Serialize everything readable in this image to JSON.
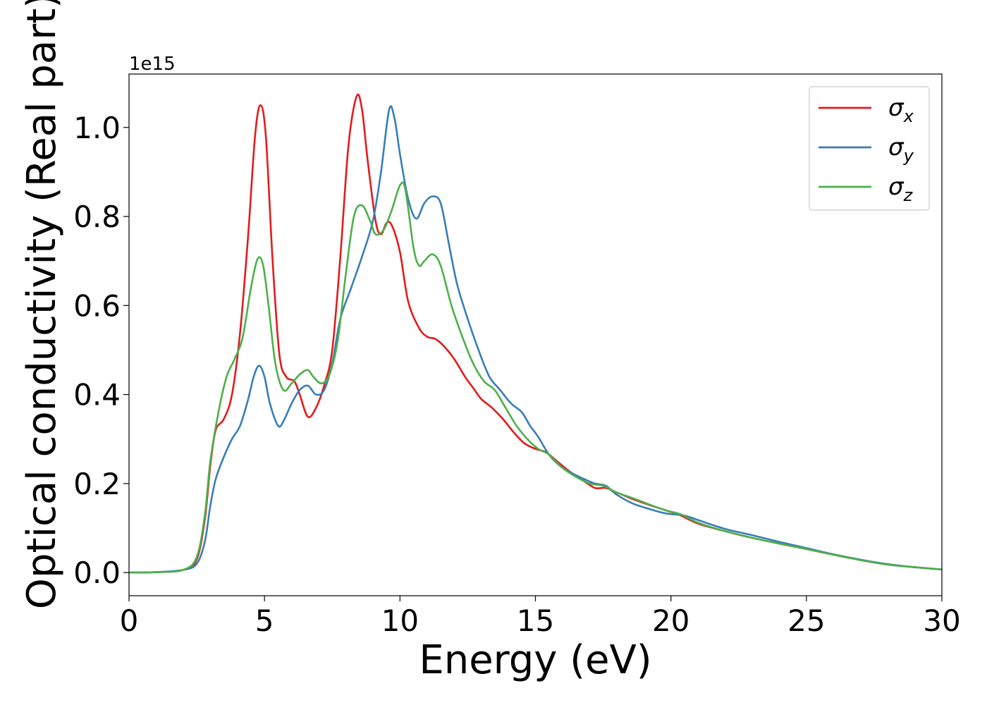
{
  "chart_data": {
    "type": "line",
    "title": "",
    "xlabel": "Energy (eV)",
    "ylabel": "Optical conductivity (Real part)",
    "offset_label": "1e15",
    "xlim": [
      0,
      30
    ],
    "ylim": [
      -0.052,
      1.12
    ],
    "x_ticks": [
      0,
      5,
      10,
      15,
      20,
      25,
      30
    ],
    "x_tick_labels": [
      "0",
      "5",
      "10",
      "15",
      "20",
      "25",
      "30"
    ],
    "y_ticks": [
      0.0,
      0.2,
      0.4,
      0.6,
      0.8,
      1.0
    ],
    "y_tick_labels": [
      "0.0",
      "0.2",
      "0.4",
      "0.6",
      "0.8",
      "1.0"
    ],
    "grid": false,
    "legend_position": "top-right",
    "series": [
      {
        "name": "σ_x",
        "color": "#e41a1c",
        "points": [
          [
            0,
            0
          ],
          [
            1,
            0.001
          ],
          [
            2,
            0.006
          ],
          [
            2.5,
            0.03
          ],
          [
            2.8,
            0.12
          ],
          [
            3.0,
            0.24
          ],
          [
            3.2,
            0.32
          ],
          [
            3.5,
            0.345
          ],
          [
            3.8,
            0.4
          ],
          [
            4.1,
            0.54
          ],
          [
            4.4,
            0.76
          ],
          [
            4.65,
            0.98
          ],
          [
            4.85,
            1.05
          ],
          [
            5.05,
            0.98
          ],
          [
            5.3,
            0.7
          ],
          [
            5.55,
            0.49
          ],
          [
            5.8,
            0.44
          ],
          [
            6.1,
            0.43
          ],
          [
            6.3,
            0.4
          ],
          [
            6.6,
            0.35
          ],
          [
            6.9,
            0.37
          ],
          [
            7.2,
            0.42
          ],
          [
            7.5,
            0.5
          ],
          [
            7.8,
            0.71
          ],
          [
            8.1,
            0.96
          ],
          [
            8.4,
            1.07
          ],
          [
            8.6,
            1.04
          ],
          [
            8.8,
            0.93
          ],
          [
            9.1,
            0.79
          ],
          [
            9.3,
            0.76
          ],
          [
            9.5,
            0.785
          ],
          [
            9.7,
            0.78
          ],
          [
            10.0,
            0.72
          ],
          [
            10.3,
            0.61
          ],
          [
            10.7,
            0.55
          ],
          [
            11.0,
            0.53
          ],
          [
            11.3,
            0.525
          ],
          [
            11.6,
            0.51
          ],
          [
            12.0,
            0.48
          ],
          [
            12.4,
            0.44
          ],
          [
            12.7,
            0.415
          ],
          [
            13.0,
            0.39
          ],
          [
            13.4,
            0.37
          ],
          [
            13.8,
            0.345
          ],
          [
            14.2,
            0.315
          ],
          [
            14.6,
            0.29
          ],
          [
            15.0,
            0.278
          ],
          [
            15.4,
            0.27
          ],
          [
            15.8,
            0.25
          ],
          [
            16.2,
            0.23
          ],
          [
            16.8,
            0.205
          ],
          [
            17.2,
            0.19
          ],
          [
            17.6,
            0.19
          ],
          [
            18.0,
            0.18
          ],
          [
            18.6,
            0.165
          ],
          [
            19.2,
            0.152
          ],
          [
            19.8,
            0.14
          ],
          [
            20.3,
            0.13
          ],
          [
            21,
            0.11
          ],
          [
            22,
            0.093
          ],
          [
            23,
            0.078
          ],
          [
            24,
            0.065
          ],
          [
            25,
            0.053
          ],
          [
            26,
            0.04
          ],
          [
            27,
            0.028
          ],
          [
            28,
            0.018
          ],
          [
            29,
            0.012
          ],
          [
            30,
            0.007
          ]
        ]
      },
      {
        "name": "σ_y",
        "color": "#377eb8",
        "points": [
          [
            0,
            0
          ],
          [
            1,
            0.001
          ],
          [
            2,
            0.006
          ],
          [
            2.5,
            0.02
          ],
          [
            2.8,
            0.07
          ],
          [
            3.0,
            0.15
          ],
          [
            3.2,
            0.21
          ],
          [
            3.5,
            0.26
          ],
          [
            3.8,
            0.3
          ],
          [
            4.1,
            0.33
          ],
          [
            4.4,
            0.39
          ],
          [
            4.6,
            0.44
          ],
          [
            4.8,
            0.465
          ],
          [
            5.0,
            0.44
          ],
          [
            5.2,
            0.38
          ],
          [
            5.5,
            0.33
          ],
          [
            5.7,
            0.34
          ],
          [
            6.0,
            0.38
          ],
          [
            6.3,
            0.41
          ],
          [
            6.6,
            0.42
          ],
          [
            6.9,
            0.4
          ],
          [
            7.2,
            0.41
          ],
          [
            7.5,
            0.47
          ],
          [
            7.8,
            0.57
          ],
          [
            8.2,
            0.64
          ],
          [
            8.6,
            0.71
          ],
          [
            9.0,
            0.79
          ],
          [
            9.3,
            0.9
          ],
          [
            9.6,
            1.04
          ],
          [
            9.8,
            1.02
          ],
          [
            10.0,
            0.94
          ],
          [
            10.3,
            0.84
          ],
          [
            10.6,
            0.795
          ],
          [
            10.9,
            0.83
          ],
          [
            11.2,
            0.845
          ],
          [
            11.5,
            0.83
          ],
          [
            11.8,
            0.74
          ],
          [
            12.1,
            0.65
          ],
          [
            12.5,
            0.57
          ],
          [
            12.9,
            0.5
          ],
          [
            13.3,
            0.44
          ],
          [
            13.7,
            0.41
          ],
          [
            14.1,
            0.38
          ],
          [
            14.5,
            0.36
          ],
          [
            14.8,
            0.33
          ],
          [
            15.1,
            0.305
          ],
          [
            15.5,
            0.265
          ],
          [
            15.9,
            0.24
          ],
          [
            16.3,
            0.225
          ],
          [
            16.8,
            0.21
          ],
          [
            17.2,
            0.2
          ],
          [
            17.6,
            0.195
          ],
          [
            18.0,
            0.175
          ],
          [
            18.6,
            0.155
          ],
          [
            19.2,
            0.143
          ],
          [
            19.8,
            0.133
          ],
          [
            20.5,
            0.128
          ],
          [
            21,
            0.118
          ],
          [
            22,
            0.098
          ],
          [
            23,
            0.084
          ],
          [
            24,
            0.069
          ],
          [
            25,
            0.055
          ],
          [
            26,
            0.041
          ],
          [
            27,
            0.029
          ],
          [
            28,
            0.019
          ],
          [
            29,
            0.012
          ],
          [
            30,
            0.007
          ]
        ]
      },
      {
        "name": "σ_z",
        "color": "#4daf4a",
        "points": [
          [
            0,
            0
          ],
          [
            1,
            0.001
          ],
          [
            2,
            0.006
          ],
          [
            2.5,
            0.035
          ],
          [
            2.8,
            0.13
          ],
          [
            3.0,
            0.25
          ],
          [
            3.3,
            0.36
          ],
          [
            3.6,
            0.44
          ],
          [
            3.9,
            0.48
          ],
          [
            4.2,
            0.53
          ],
          [
            4.5,
            0.64
          ],
          [
            4.75,
            0.705
          ],
          [
            4.95,
            0.69
          ],
          [
            5.15,
            0.6
          ],
          [
            5.4,
            0.47
          ],
          [
            5.7,
            0.41
          ],
          [
            6.0,
            0.425
          ],
          [
            6.3,
            0.445
          ],
          [
            6.6,
            0.455
          ],
          [
            6.8,
            0.44
          ],
          [
            7.1,
            0.425
          ],
          [
            7.4,
            0.445
          ],
          [
            7.7,
            0.52
          ],
          [
            8.0,
            0.67
          ],
          [
            8.3,
            0.8
          ],
          [
            8.6,
            0.825
          ],
          [
            8.9,
            0.79
          ],
          [
            9.1,
            0.76
          ],
          [
            9.4,
            0.77
          ],
          [
            9.7,
            0.815
          ],
          [
            10.0,
            0.87
          ],
          [
            10.2,
            0.86
          ],
          [
            10.5,
            0.73
          ],
          [
            10.7,
            0.69
          ],
          [
            10.9,
            0.7
          ],
          [
            11.2,
            0.715
          ],
          [
            11.5,
            0.69
          ],
          [
            11.9,
            0.6
          ],
          [
            12.3,
            0.53
          ],
          [
            12.7,
            0.47
          ],
          [
            13.1,
            0.43
          ],
          [
            13.5,
            0.41
          ],
          [
            13.9,
            0.37
          ],
          [
            14.3,
            0.33
          ],
          [
            14.7,
            0.3
          ],
          [
            15.1,
            0.278
          ],
          [
            15.5,
            0.265
          ],
          [
            16.0,
            0.235
          ],
          [
            16.5,
            0.215
          ],
          [
            17.0,
            0.2
          ],
          [
            17.5,
            0.195
          ],
          [
            18.0,
            0.18
          ],
          [
            18.6,
            0.167
          ],
          [
            19.2,
            0.153
          ],
          [
            19.8,
            0.14
          ],
          [
            20.4,
            0.13
          ],
          [
            21,
            0.112
          ],
          [
            22,
            0.093
          ],
          [
            23,
            0.078
          ],
          [
            24,
            0.065
          ],
          [
            25,
            0.053
          ],
          [
            26,
            0.04
          ],
          [
            27,
            0.028
          ],
          [
            28,
            0.018
          ],
          [
            29,
            0.012
          ],
          [
            30,
            0.007
          ]
        ]
      }
    ]
  }
}
